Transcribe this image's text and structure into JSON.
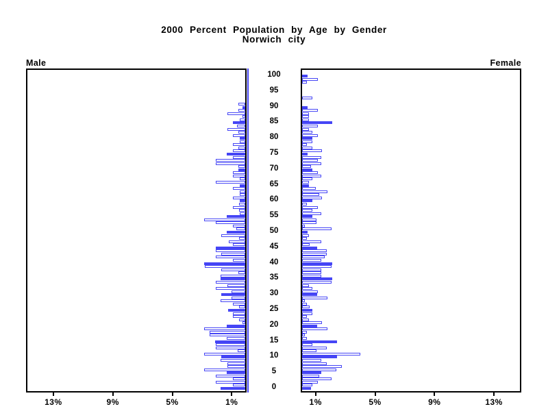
{
  "title": {
    "line1": "2000 Percent Population by Age by Gender",
    "line2": "Norwich city"
  },
  "panel_labels": {
    "left": "Male",
    "right": "Female"
  },
  "colors": {
    "bar_blue": "#4545f5",
    "axis_black": "#000000",
    "background": "#ffffff"
  },
  "chart_data": {
    "type": "bar",
    "subtype": "population-pyramid-horizontal",
    "title": "2000 Percent Population by Age by Gender",
    "subtitle": "Norwich city",
    "value_unit": "percent",
    "age_start": 0,
    "age_step": 1,
    "age_axis_tick_labels": [
      "0",
      "5",
      "10",
      "15",
      "20",
      "25",
      "30",
      "35",
      "40",
      "45",
      "50",
      "55",
      "60",
      "65",
      "70",
      "75",
      "80",
      "85",
      "90",
      "95",
      "100"
    ],
    "age_axis_tick_values": [
      0,
      5,
      10,
      15,
      20,
      25,
      30,
      35,
      40,
      45,
      50,
      55,
      60,
      65,
      70,
      75,
      80,
      85,
      90,
      95,
      100
    ],
    "pct_axis_tick_values": [
      1,
      5,
      9,
      13
    ],
    "male_pct_tick_labels": [
      "13%",
      "9%",
      "5%",
      "1%"
    ],
    "female_pct_tick_labels": [
      "1%",
      "5%",
      "9%",
      "13%"
    ],
    "xlim": [
      0,
      14.8
    ],
    "legend": "solid filled bars = ages at multiples of 5; outlined bars = intermediate single ages",
    "grid": false,
    "series": [
      {
        "name": "Male",
        "side": "left",
        "values": [
          1.66,
          0.83,
          2.0,
          0.83,
          2.0,
          1.24,
          2.76,
          1.2,
          1.2,
          1.66,
          1.6,
          2.76,
          0.5,
          2.0,
          2.0,
          2.03,
          1.24,
          2.4,
          2.4,
          2.76,
          1.24,
          0.2,
          0.41,
          0.83,
          0.83,
          1.15,
          0.41,
          0.83,
          1.66,
          0.92,
          1.6,
          0.92,
          2.0,
          1.2,
          2.0,
          1.66,
          1.66,
          0.46,
          1.6,
          2.7,
          2.76,
          0.83,
          2.0,
          1.6,
          2.0,
          2.0,
          0.83,
          1.1,
          0.41,
          1.6,
          1.24,
          0.58,
          0.83,
          2.0,
          2.76,
          1.24,
          0.37,
          0.41,
          0.83,
          0.41,
          0.37,
          0.83,
          0.37,
          0.37,
          0.83,
          0.37,
          2.0,
          0.37,
          0.83,
          0.83,
          0.46,
          0.46,
          2.0,
          2.0,
          0.83,
          1.24,
          0.83,
          0.46,
          0.83,
          0.37,
          0.37,
          0.83,
          0.46,
          1.2,
          0.55,
          0.83,
          0.37,
          0.2,
          1.2,
          0.46,
          0.2,
          0.46,
          0,
          0,
          0,
          0,
          0,
          0,
          0,
          0,
          0
        ]
      },
      {
        "name": "Female",
        "side": "right",
        "values": [
          0.6,
          0.69,
          1.04,
          2.0,
          1.17,
          1.28,
          2.3,
          2.66,
          1.66,
          1.28,
          2.35,
          3.93,
          0.97,
          1.66,
          0.69,
          2.35,
          0.3,
          0.17,
          0.34,
          1.7,
          1.0,
          1.33,
          0.46,
          0.34,
          0.69,
          0.69,
          0.5,
          0.34,
          0.17,
          1.7,
          1.0,
          1.04,
          0.69,
          0.46,
          1.99,
          2.04,
          1.3,
          1.3,
          1.3,
          1.99,
          2.04,
          1.3,
          1.5,
          1.66,
          1.66,
          1.0,
          0.5,
          1.3,
          0.34,
          0.46,
          0.37,
          1.97,
          0.17,
          0.97,
          0.97,
          0.69,
          1.3,
          0.69,
          1.04,
          0.34,
          0.69,
          1.35,
          1.17,
          1.7,
          0.9,
          0.46,
          0.46,
          0.69,
          1.3,
          1.04,
          0.69,
          0.6,
          1.3,
          1.04,
          1.3,
          0.37,
          1.35,
          0.69,
          0.34,
          0.69,
          0.69,
          1.04,
          0.69,
          0.46,
          1.04,
          2.04,
          0.46,
          0.46,
          0.46,
          1.04,
          0.37,
          0,
          0,
          0.69,
          0,
          0,
          0,
          0,
          0.34,
          1.04,
          0.37
        ]
      }
    ]
  },
  "layout_note": "left panel Male bars grow right-to-left from center; right panel Female bars grow left-to-right from center; age labels run up the middle"
}
